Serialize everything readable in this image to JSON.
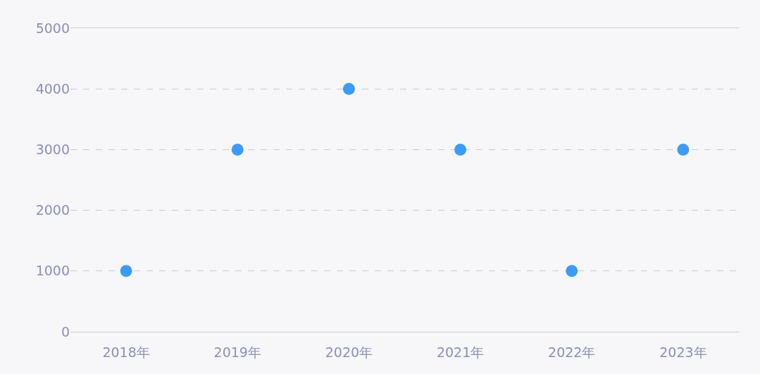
{
  "chart_data": {
    "type": "scatter",
    "categories": [
      "2018年",
      "2019年",
      "2020年",
      "2021年",
      "2022年",
      "2023年"
    ],
    "series": [
      {
        "color": "#3a9bfc",
        "values": [
          1000,
          3000,
          4000,
          3000,
          1000,
          3000
        ]
      }
    ],
    "ylim": [
      0,
      5000
    ],
    "yticks": [
      0,
      1000,
      2000,
      3000,
      4000,
      5000
    ],
    "grid": "y",
    "legend": false,
    "marker": "circle"
  }
}
